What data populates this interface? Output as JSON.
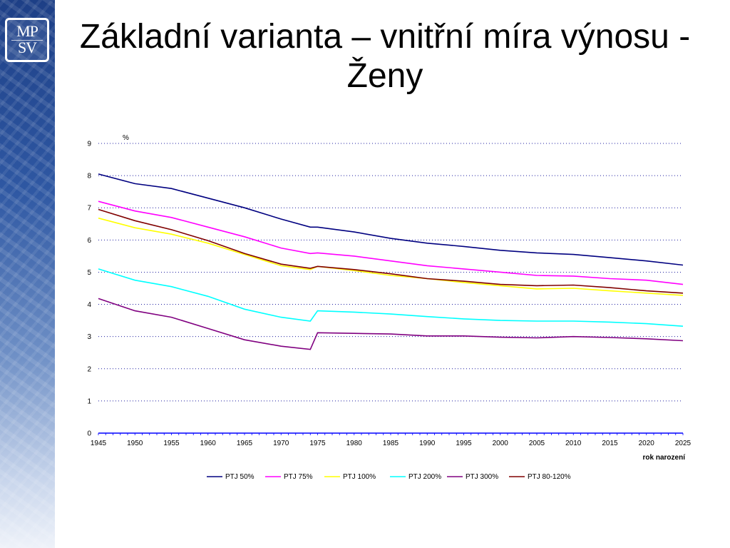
{
  "slide": {
    "title": "Základní varianta – vnitřní míra výnosu - Ženy",
    "logo": {
      "row1": "MP",
      "row2": "SV"
    }
  },
  "chart_data": {
    "type": "line",
    "title": "Základní varianta – vnitřní míra výnosu - Ženy",
    "ylabel": "%",
    "xlabel": "rok narození",
    "ylim": [
      0,
      9
    ],
    "xlim": [
      1945,
      2025
    ],
    "yticks": [
      0,
      1,
      2,
      3,
      4,
      5,
      6,
      7,
      8,
      9
    ],
    "xticks": [
      1945,
      1950,
      1955,
      1960,
      1965,
      1970,
      1975,
      1980,
      1985,
      1990,
      1995,
      2000,
      2005,
      2010,
      2015,
      2020,
      2025
    ],
    "grid": "horizontal-dotted",
    "legend_position": "bottom",
    "x": [
      1945,
      1950,
      1955,
      1960,
      1965,
      1970,
      1974,
      1975,
      1980,
      1985,
      1990,
      1995,
      2000,
      2005,
      2010,
      2015,
      2020,
      2025
    ],
    "series": [
      {
        "name": "PTJ 50%",
        "color": "#000080",
        "values": [
          8.05,
          7.75,
          7.6,
          7.3,
          7.0,
          6.65,
          6.4,
          6.4,
          6.25,
          6.05,
          5.9,
          5.8,
          5.68,
          5.6,
          5.55,
          5.45,
          5.35,
          5.22
        ]
      },
      {
        "name": "PTJ 75%",
        "color": "#ff00ff",
        "values": [
          7.2,
          6.9,
          6.7,
          6.4,
          6.1,
          5.75,
          5.58,
          5.6,
          5.5,
          5.35,
          5.2,
          5.1,
          5.0,
          4.9,
          4.88,
          4.8,
          4.75,
          4.62
        ]
      },
      {
        "name": "PTJ 100%",
        "color": "#ffff00",
        "values": [
          6.68,
          6.38,
          6.18,
          5.9,
          5.55,
          5.2,
          5.08,
          5.18,
          5.05,
          4.9,
          4.8,
          4.68,
          4.58,
          4.48,
          4.5,
          4.42,
          4.35,
          4.28
        ]
      },
      {
        "name": "PTJ 200%",
        "color": "#00ffff",
        "values": [
          5.1,
          4.75,
          4.55,
          4.25,
          3.85,
          3.6,
          3.48,
          3.8,
          3.76,
          3.7,
          3.62,
          3.55,
          3.5,
          3.48,
          3.48,
          3.45,
          3.4,
          3.32
        ]
      },
      {
        "name": "PTJ 300%",
        "color": "#800080",
        "values": [
          4.18,
          3.8,
          3.6,
          3.25,
          2.9,
          2.7,
          2.6,
          3.12,
          3.1,
          3.08,
          3.02,
          3.02,
          2.98,
          2.96,
          3.0,
          2.97,
          2.93,
          2.87
        ]
      },
      {
        "name": "PTJ 80-120%",
        "color": "#800000",
        "values": [
          6.95,
          6.6,
          6.32,
          5.98,
          5.58,
          5.25,
          5.12,
          5.18,
          5.08,
          4.95,
          4.8,
          4.72,
          4.62,
          4.58,
          4.6,
          4.52,
          4.42,
          4.35
        ]
      }
    ]
  }
}
